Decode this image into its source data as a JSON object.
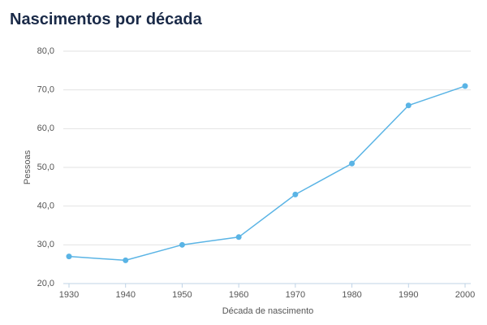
{
  "chart_data": {
    "type": "line",
    "title": "Nascimentos por década",
    "x": [
      1930,
      1940,
      1950,
      1960,
      1970,
      1980,
      1990,
      2000
    ],
    "series": [
      {
        "name": "Pessoas",
        "color": "#5ab4e5",
        "values": [
          27,
          26,
          30,
          32,
          43,
          51,
          66,
          71
        ]
      }
    ],
    "xlabel": "Década de nascimento",
    "ylabel": "Pessoas",
    "xlim": [
      1930,
      2000
    ],
    "xticks": [
      1930,
      1940,
      1950,
      1960,
      1970,
      1980,
      1990,
      2000
    ],
    "ylim": [
      20,
      80
    ],
    "yticks": [
      {
        "value": 20,
        "label": "20,0"
      },
      {
        "value": 30,
        "label": "30,0"
      },
      {
        "value": 40,
        "label": "40,0"
      },
      {
        "value": 50,
        "label": "50,0"
      },
      {
        "value": 60,
        "label": "60,0"
      },
      {
        "value": 70,
        "label": "70,0"
      },
      {
        "value": 80,
        "label": "80,0"
      }
    ],
    "grid": true
  }
}
